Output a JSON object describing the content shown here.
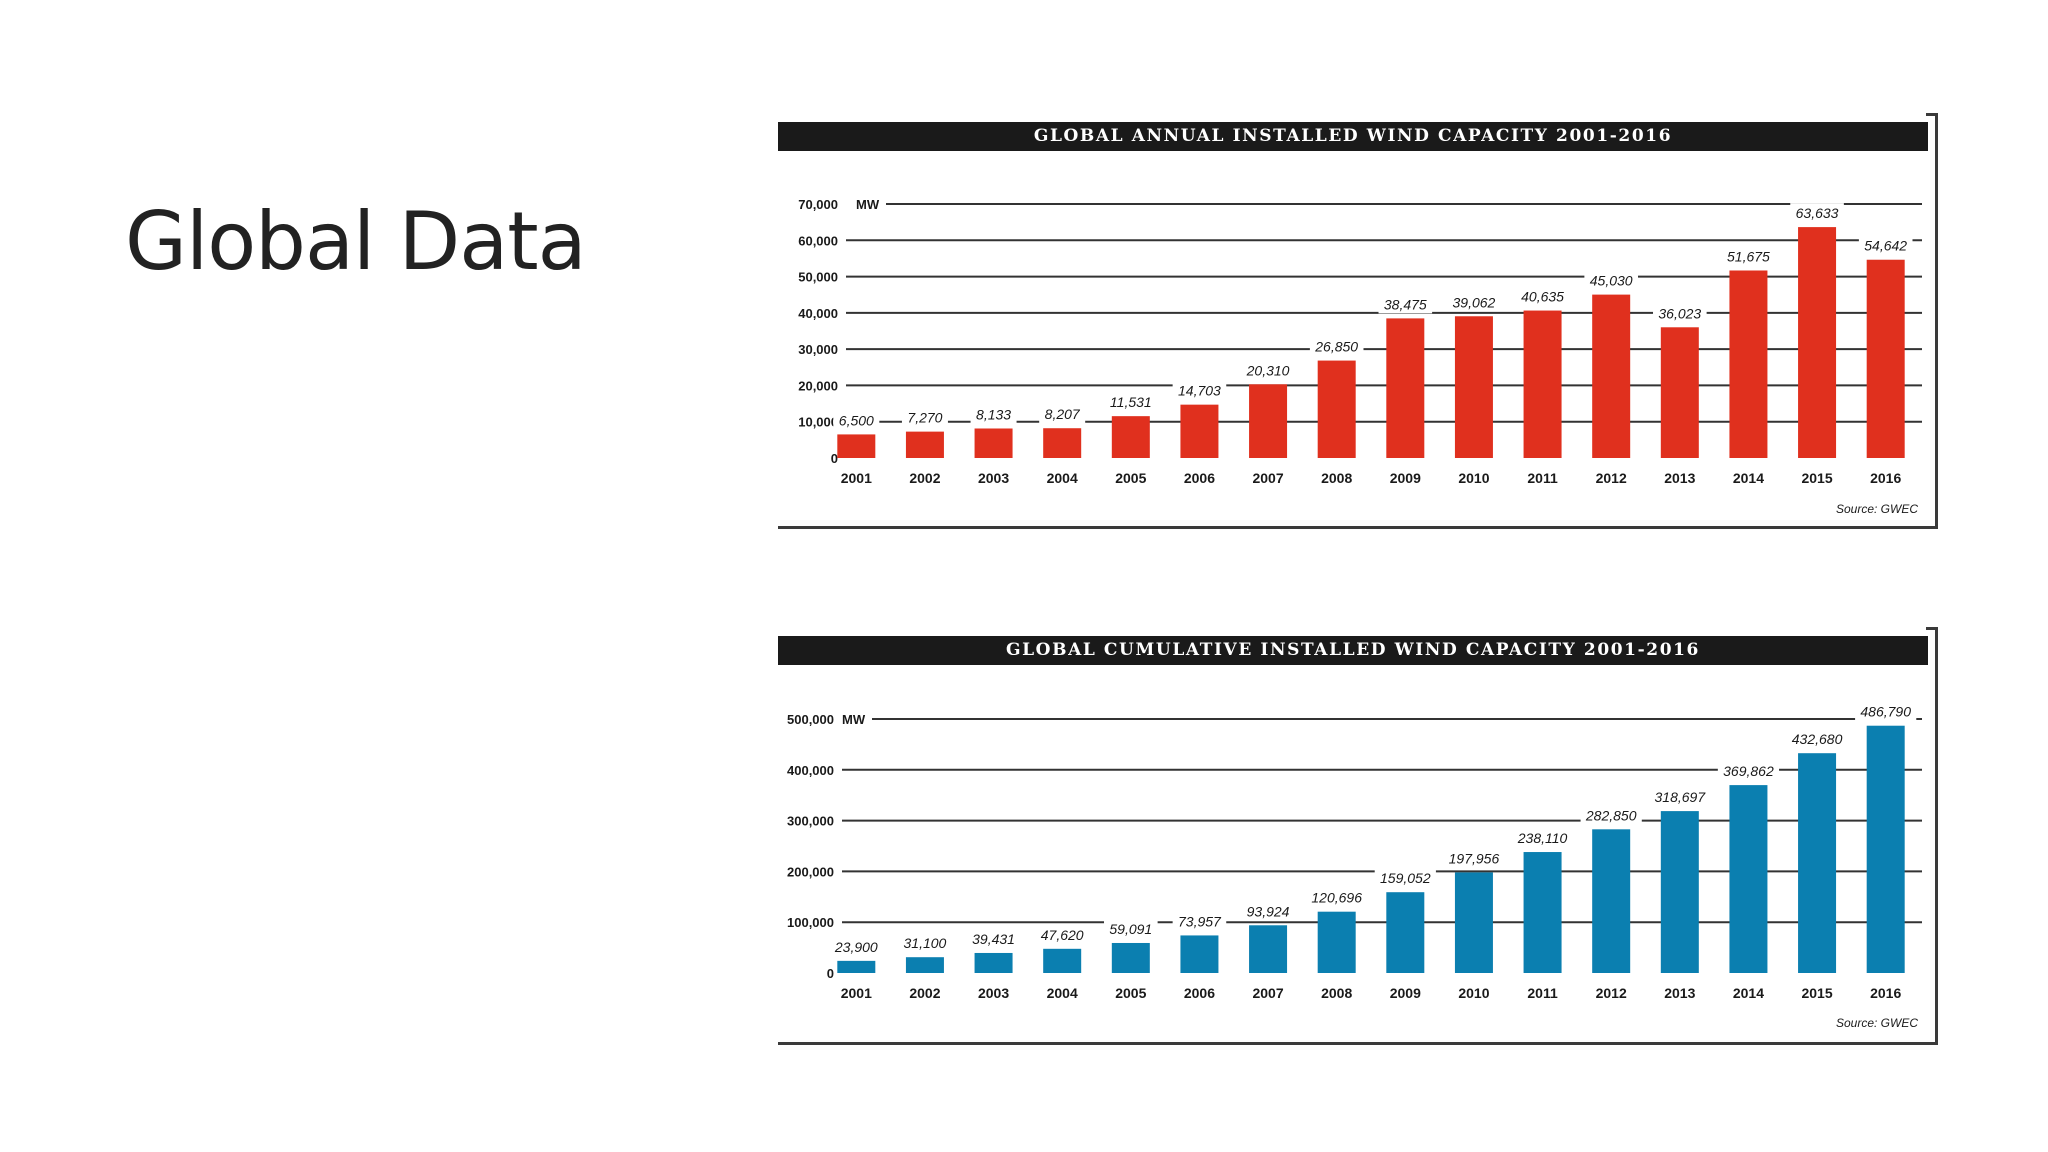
{
  "slide": {
    "title": "Global Data"
  },
  "chart_data": [
    {
      "type": "bar",
      "title": "GLOBAL ANNUAL INSTALLED WIND CAPACITY 2001-2016",
      "unit": "MW",
      "source": "Source: GWEC",
      "categories": [
        "2001",
        "2002",
        "2003",
        "2004",
        "2005",
        "2006",
        "2007",
        "2008",
        "2009",
        "2010",
        "2011",
        "2012",
        "2013",
        "2014",
        "2015",
        "2016"
      ],
      "values": [
        6500,
        7270,
        8133,
        8207,
        11531,
        14703,
        20310,
        26850,
        38475,
        39062,
        40635,
        45030,
        36023,
        51675,
        63633,
        54642
      ],
      "value_labels": [
        "6,500",
        "7,270",
        "8,133",
        "8,207",
        "11,531",
        "14,703",
        "20,310",
        "26,850",
        "38,475",
        "39,062",
        "40,635",
        "45,030",
        "36,023",
        "51,675",
        "63,633",
        "54,642"
      ],
      "yticks": [
        0,
        10000,
        20000,
        30000,
        40000,
        50000,
        60000,
        70000
      ],
      "ytick_labels": [
        "0",
        "10,000",
        "20,000",
        "30,000",
        "40,000",
        "50,000",
        "60,000",
        "70,000"
      ],
      "ylim": [
        0,
        70000
      ],
      "bar_color": "#e0301e",
      "grid": true
    },
    {
      "type": "bar",
      "title": "GLOBAL CUMULATIVE INSTALLED WIND CAPACITY 2001-2016",
      "unit": "MW",
      "source": "Source: GWEC",
      "categories": [
        "2001",
        "2002",
        "2003",
        "2004",
        "2005",
        "2006",
        "2007",
        "2008",
        "2009",
        "2010",
        "2011",
        "2012",
        "2013",
        "2014",
        "2015",
        "2016"
      ],
      "values": [
        23900,
        31100,
        39431,
        47620,
        59091,
        73957,
        93924,
        120696,
        159052,
        197956,
        238110,
        282850,
        318697,
        369862,
        432680,
        486790
      ],
      "value_labels": [
        "23,900",
        "31,100",
        "39,431",
        "47,620",
        "59,091",
        "73,957",
        "93,924",
        "120,696",
        "159,052",
        "197,956",
        "238,110",
        "282,850",
        "318,697",
        "369,862",
        "432,680",
        "486,790"
      ],
      "yticks": [
        0,
        100000,
        200000,
        300000,
        400000,
        500000
      ],
      "ytick_labels": [
        "0",
        "100,000",
        "200,000",
        "300,000",
        "400,000",
        "500,000"
      ],
      "ylim": [
        0,
        500000
      ],
      "bar_color": "#0b7fb0",
      "grid": true
    }
  ]
}
